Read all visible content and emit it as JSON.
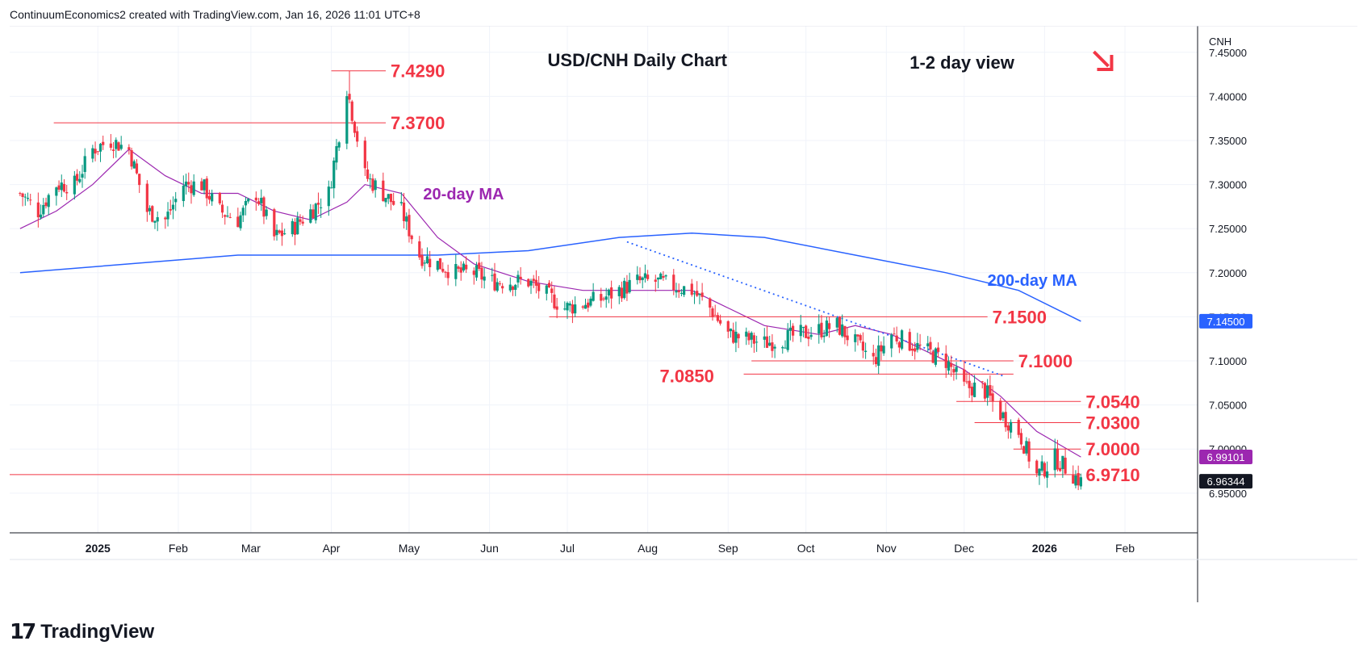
{
  "header": "ContinuumEconomics2 created with TradingView.com, Jan 16, 2026 11:01 UTC+8",
  "brand": "TradingView",
  "chart_data": {
    "type": "candlestick",
    "title": "USD/CNH Daily Chart",
    "subtitle": "1-2 day view",
    "direction": "down",
    "currency_label": "CNH",
    "ylim": [
      6.905,
      7.48
    ],
    "y_ticks": [
      "7.45000",
      "7.40000",
      "7.35000",
      "7.30000",
      "7.25000",
      "7.20000",
      "7.15000",
      "7.10000",
      "7.05000",
      "7.00000",
      "6.95000"
    ],
    "x_ticks": [
      "2025",
      "Feb",
      "Mar",
      "Apr",
      "May",
      "Jun",
      "Jul",
      "Aug",
      "Sep",
      "Oct",
      "Nov",
      "Dec",
      "2026",
      "Feb"
    ],
    "ma_labels": {
      "ma20": "20-day MA",
      "ma200": "200-day MA"
    },
    "last_price": "6.96344",
    "ma20_last": "6.99101",
    "level_marker": "7.14500",
    "levels": [
      {
        "label": "7.4290",
        "value": 7.429
      },
      {
        "label": "7.3700",
        "value": 7.37
      },
      {
        "label": "7.1500",
        "value": 7.15
      },
      {
        "label": "7.1000",
        "value": 7.1
      },
      {
        "label": "7.0850",
        "value": 7.085
      },
      {
        "label": "7.0540",
        "value": 7.054
      },
      {
        "label": "7.0300",
        "value": 7.03
      },
      {
        "label": "7.0000",
        "value": 7.0
      },
      {
        "label": "6.9710",
        "value": 6.971
      }
    ],
    "trendline": [
      {
        "date": "2025-07-24",
        "value": 7.235
      },
      {
        "date": "2025-12-16",
        "value": 7.083
      }
    ],
    "close_path": [
      [
        "2024-12-02",
        7.29
      ],
      [
        "2024-12-09",
        7.27
      ],
      [
        "2024-12-16",
        7.3
      ],
      [
        "2024-12-23",
        7.3
      ],
      [
        "2024-12-30",
        7.34
      ],
      [
        "2025-01-06",
        7.35
      ],
      [
        "2025-01-13",
        7.34
      ],
      [
        "2025-01-20",
        7.27
      ],
      [
        "2025-01-27",
        7.26
      ],
      [
        "2025-02-03",
        7.3
      ],
      [
        "2025-02-10",
        7.3
      ],
      [
        "2025-02-17",
        7.27
      ],
      [
        "2025-02-24",
        7.26
      ],
      [
        "2025-03-03",
        7.29
      ],
      [
        "2025-03-10",
        7.24
      ],
      [
        "2025-03-17",
        7.25
      ],
      [
        "2025-03-24",
        7.27
      ],
      [
        "2025-03-31",
        7.29
      ],
      [
        "2025-04-07",
        7.41
      ],
      [
        "2025-04-14",
        7.31
      ],
      [
        "2025-04-21",
        7.29
      ],
      [
        "2025-04-28",
        7.27
      ],
      [
        "2025-05-05",
        7.22
      ],
      [
        "2025-05-12",
        7.21
      ],
      [
        "2025-05-19",
        7.2
      ],
      [
        "2025-05-26",
        7.2
      ],
      [
        "2025-06-02",
        7.19
      ],
      [
        "2025-06-16",
        7.19
      ],
      [
        "2025-06-30",
        7.16
      ],
      [
        "2025-07-14",
        7.17
      ],
      [
        "2025-07-28",
        7.19
      ],
      [
        "2025-08-04",
        7.19
      ],
      [
        "2025-08-18",
        7.18
      ],
      [
        "2025-08-25",
        7.16
      ],
      [
        "2025-09-01",
        7.13
      ],
      [
        "2025-09-15",
        7.12
      ],
      [
        "2025-09-29",
        7.13
      ],
      [
        "2025-10-13",
        7.14
      ],
      [
        "2025-10-27",
        7.1
      ],
      [
        "2025-11-03",
        7.13
      ],
      [
        "2025-11-17",
        7.11
      ],
      [
        "2025-11-24",
        7.1
      ],
      [
        "2025-12-01",
        7.07
      ],
      [
        "2025-12-08",
        7.07
      ],
      [
        "2025-12-15",
        7.04
      ],
      [
        "2025-12-22",
        7.02
      ],
      [
        "2025-12-29",
        6.97
      ],
      [
        "2026-01-05",
        6.99
      ],
      [
        "2026-01-15",
        6.963
      ]
    ],
    "ma20": [
      [
        "2024-12-02",
        7.25
      ],
      [
        "2024-12-16",
        7.27
      ],
      [
        "2024-12-30",
        7.3
      ],
      [
        "2025-01-13",
        7.34
      ],
      [
        "2025-01-27",
        7.31
      ],
      [
        "2025-02-10",
        7.29
      ],
      [
        "2025-02-24",
        7.29
      ],
      [
        "2025-03-10",
        7.27
      ],
      [
        "2025-03-24",
        7.26
      ],
      [
        "2025-04-07",
        7.28
      ],
      [
        "2025-04-14",
        7.3
      ],
      [
        "2025-04-28",
        7.29
      ],
      [
        "2025-05-12",
        7.24
      ],
      [
        "2025-05-26",
        7.21
      ],
      [
        "2025-06-16",
        7.19
      ],
      [
        "2025-07-07",
        7.18
      ],
      [
        "2025-07-28",
        7.18
      ],
      [
        "2025-08-18",
        7.18
      ],
      [
        "2025-09-01",
        7.16
      ],
      [
        "2025-09-15",
        7.14
      ],
      [
        "2025-10-06",
        7.13
      ],
      [
        "2025-10-20",
        7.14
      ],
      [
        "2025-11-03",
        7.13
      ],
      [
        "2025-11-17",
        7.11
      ],
      [
        "2025-12-01",
        7.09
      ],
      [
        "2025-12-15",
        7.06
      ],
      [
        "2025-12-29",
        7.02
      ],
      [
        "2026-01-15",
        6.991
      ]
    ],
    "ma200": [
      [
        "2024-12-02",
        7.2
      ],
      [
        "2025-01-13",
        7.21
      ],
      [
        "2025-02-24",
        7.22
      ],
      [
        "2025-04-07",
        7.22
      ],
      [
        "2025-05-12",
        7.22
      ],
      [
        "2025-06-16",
        7.225
      ],
      [
        "2025-07-21",
        7.24
      ],
      [
        "2025-08-18",
        7.245
      ],
      [
        "2025-09-15",
        7.24
      ],
      [
        "2025-10-20",
        7.22
      ],
      [
        "2025-11-24",
        7.2
      ],
      [
        "2025-12-22",
        7.18
      ],
      [
        "2026-01-15",
        7.145
      ]
    ],
    "colors": {
      "up": "#089981",
      "down": "#f23645",
      "level": "#f23645",
      "ma20": "#9c27b0",
      "ma200": "#2962ff",
      "trendline": "#2962ff",
      "grid": "#f0f3fa",
      "axis": "#131722"
    }
  }
}
